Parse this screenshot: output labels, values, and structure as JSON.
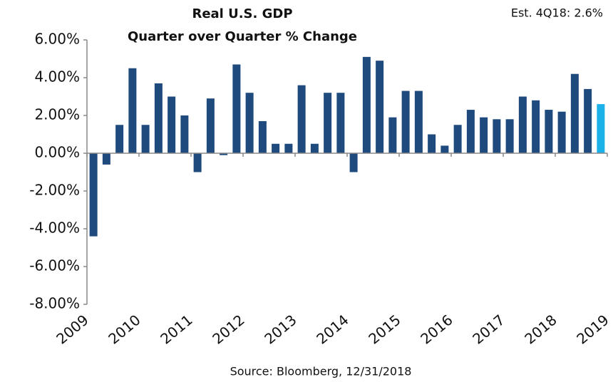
{
  "chart_data": {
    "type": "bar",
    "title": "Real U.S. GDP",
    "subtitle": "Quarter over Quarter % Change",
    "annotation": "Est. 4Q18: 2.6%",
    "source": "Source: Bloomberg, 12/31/2018",
    "x": [
      2009,
      2009.25,
      2009.5,
      2009.75,
      2010,
      2010.25,
      2010.5,
      2010.75,
      2011,
      2011.25,
      2011.5,
      2011.75,
      2012,
      2012.25,
      2012.5,
      2012.75,
      2013,
      2013.25,
      2013.5,
      2013.75,
      2014,
      2014.25,
      2014.5,
      2014.75,
      2015,
      2015.25,
      2015.5,
      2015.75,
      2016,
      2016.25,
      2016.5,
      2016.75,
      2017,
      2017.25,
      2017.5,
      2017.75,
      2018,
      2018.25,
      2018.5,
      2018.75
    ],
    "values": [
      -4.4,
      -0.6,
      1.5,
      4.5,
      1.5,
      3.7,
      3.0,
      2.0,
      -1.0,
      2.9,
      -0.1,
      4.7,
      3.2,
      1.7,
      0.5,
      0.5,
      3.6,
      0.5,
      3.2,
      3.2,
      -1.0,
      5.1,
      4.9,
      1.9,
      3.3,
      3.3,
      1.0,
      0.4,
      1.5,
      2.3,
      1.9,
      1.8,
      1.8,
      3.0,
      2.8,
      2.3,
      2.2,
      4.2,
      3.4,
      2.6
    ],
    "colors": [
      "#1f4a7e",
      "#1f4a7e",
      "#1f4a7e",
      "#1f4a7e",
      "#1f4a7e",
      "#1f4a7e",
      "#1f4a7e",
      "#1f4a7e",
      "#1f4a7e",
      "#1f4a7e",
      "#1f4a7e",
      "#1f4a7e",
      "#1f4a7e",
      "#1f4a7e",
      "#1f4a7e",
      "#1f4a7e",
      "#1f4a7e",
      "#1f4a7e",
      "#1f4a7e",
      "#1f4a7e",
      "#1f4a7e",
      "#1f4a7e",
      "#1f4a7e",
      "#1f4a7e",
      "#1f4a7e",
      "#1f4a7e",
      "#1f4a7e",
      "#1f4a7e",
      "#1f4a7e",
      "#1f4a7e",
      "#1f4a7e",
      "#1f4a7e",
      "#1f4a7e",
      "#1f4a7e",
      "#1f4a7e",
      "#1f4a7e",
      "#1f4a7e",
      "#1f4a7e",
      "#1f4a7e",
      "#1ab0e8"
    ],
    "xlim": [
      2009,
      2019
    ],
    "xticks": [
      2009,
      2010,
      2011,
      2012,
      2013,
      2014,
      2015,
      2016,
      2017,
      2018,
      2019
    ],
    "ylim": [
      -8,
      6
    ],
    "yticks": [
      {
        "value": -8,
        "label": "-8.00%"
      },
      {
        "value": -6,
        "label": "-6.00%"
      },
      {
        "value": -4,
        "label": "-4.00%"
      },
      {
        "value": -2,
        "label": "-2.00%"
      },
      {
        "value": 0,
        "label": "0.00%"
      },
      {
        "value": 2,
        "label": "2.00%"
      },
      {
        "value": 4,
        "label": "4.00%"
      },
      {
        "value": 6,
        "label": "6.00%"
      }
    ],
    "grid": false
  }
}
